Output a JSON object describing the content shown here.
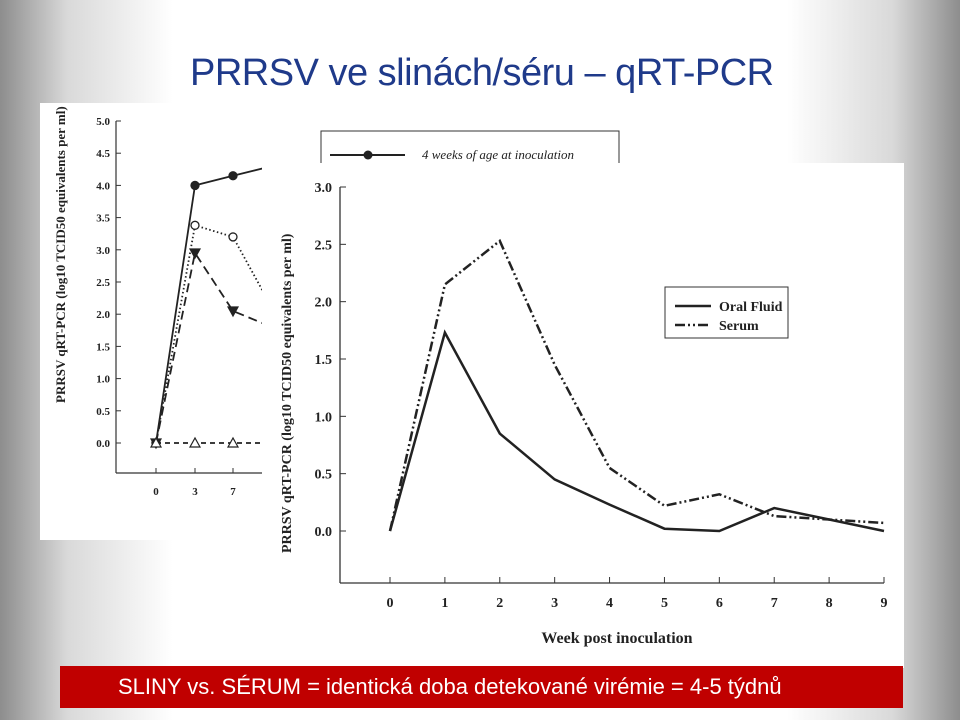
{
  "slide": {
    "title": "PRRSV ve slinách/séru – qRT-PCR",
    "caption": "SLINY vs. SÉRUM = identická doba detekované virémie = 4-5 týdnů"
  },
  "chart_data": [
    {
      "type": "line",
      "title": "",
      "xlabel": "",
      "ylabel": "PRRSV qRT-PCR (log10 TCID50 equivalents per ml)",
      "xticks": [
        "0",
        "3",
        "7"
      ],
      "yticks": [
        "0.0",
        "0.5",
        "1.0",
        "1.5",
        "2.0",
        "2.5",
        "3.0",
        "3.5",
        "4.0",
        "4.5",
        "5.0"
      ],
      "ylim": [
        0,
        5
      ],
      "legend": {
        "position": "top-right",
        "visible_entries": [
          "4 weeks of age at inoculation"
        ]
      },
      "partially_obscured": true,
      "series": [
        {
          "name": "4 weeks of age at inoculation",
          "color": "#222222",
          "style": "solid-filled-circle",
          "x": [
            0,
            3,
            7,
            10
          ],
          "y": [
            0.0,
            4.0,
            4.15,
            4.3
          ]
        },
        {
          "style": "dotted-open-circle",
          "color": "#222222",
          "x": [
            0,
            3,
            7,
            10
          ],
          "y": [
            0.0,
            3.38,
            3.2,
            2.1
          ]
        },
        {
          "style": "dashed-filled-triangle",
          "color": "#222222",
          "x": [
            0,
            3,
            7,
            10
          ],
          "y": [
            0.0,
            2.95,
            2.05,
            1.8
          ]
        },
        {
          "style": "dashed-open-triangle",
          "color": "#222222",
          "x": [
            0,
            3,
            7,
            10
          ],
          "y": [
            0.0,
            0.0,
            0.0,
            0.0
          ]
        }
      ]
    },
    {
      "type": "line",
      "title": "",
      "xlabel": "Week post inoculation",
      "ylabel": "PRRSV qRT-PCR (log10 TCID50 equivalents per ml)",
      "x": [
        0,
        1,
        2,
        3,
        4,
        5,
        6,
        7,
        8,
        9
      ],
      "xticks": [
        "0",
        "1",
        "2",
        "3",
        "4",
        "5",
        "6",
        "7",
        "8",
        "9"
      ],
      "yticks": [
        "0.0",
        "0.5",
        "1.0",
        "1.5",
        "2.0",
        "2.5",
        "3.0"
      ],
      "xlim": [
        0,
        9
      ],
      "ylim": [
        0,
        3
      ],
      "legend": {
        "position": "top-right"
      },
      "series": [
        {
          "name": "Oral Fluid",
          "color": "#222222",
          "style": "solid",
          "values": [
            0.0,
            1.73,
            0.85,
            0.45,
            0.23,
            0.02,
            0.0,
            0.2,
            0.1,
            0.0
          ]
        },
        {
          "name": "Serum",
          "color": "#222222",
          "style": "dash-dot-dot",
          "values": [
            0.0,
            2.15,
            2.53,
            1.45,
            0.55,
            0.22,
            0.32,
            0.13,
            0.1,
            0.07
          ]
        }
      ]
    }
  ]
}
